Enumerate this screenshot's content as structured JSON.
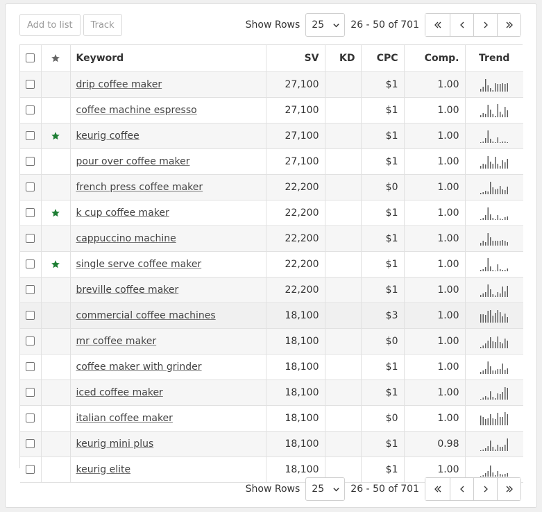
{
  "toolbar": {
    "add_to_list": "Add to list",
    "track": "Track",
    "show_rows_label": "Show Rows",
    "rows_value": "25",
    "range": "26 - 50 of 701"
  },
  "columns": {
    "keyword": "Keyword",
    "sv": "SV",
    "kd": "KD",
    "cpc": "CPC",
    "comp": "Comp.",
    "trend": "Trend"
  },
  "colors": {
    "star_green": "#1e7e34",
    "header_star": "#666666",
    "trend_bar": "#555555"
  },
  "rows": [
    {
      "keyword": "drip coffee maker",
      "starred": false,
      "sv": "27,100",
      "kd": "",
      "cpc": "$1",
      "comp": "1.00",
      "trend": [
        0.2,
        0.35,
        0.9,
        0.45,
        0.25,
        0.1,
        0.6,
        0.55,
        0.55,
        0.6,
        0.55,
        0.6
      ]
    },
    {
      "keyword": "coffee machine espresso",
      "starred": false,
      "sv": "27,100",
      "kd": "",
      "cpc": "$1",
      "comp": "1.00",
      "trend": [
        0.15,
        0.3,
        0.25,
        0.9,
        0.55,
        0.25,
        0.1,
        0.95,
        0.4,
        0.2,
        0.75,
        0.5
      ]
    },
    {
      "keyword": "keurig coffee",
      "starred": true,
      "sv": "27,100",
      "kd": "",
      "cpc": "$1",
      "comp": "1.00",
      "trend": [
        0.05,
        0.1,
        0.35,
        0.9,
        0.3,
        0.1,
        0.05,
        0.4,
        0.05,
        0.1,
        0.1,
        0.05
      ]
    },
    {
      "keyword": "pour over coffee maker",
      "starred": false,
      "sv": "27,100",
      "kd": "",
      "cpc": "$1",
      "comp": "1.00",
      "trend": [
        0.2,
        0.35,
        0.3,
        0.9,
        0.5,
        0.35,
        0.85,
        0.35,
        0.2,
        0.6,
        0.45,
        0.7
      ]
    },
    {
      "keyword": "french press coffee maker",
      "starred": false,
      "sv": "22,200",
      "kd": "",
      "cpc": "$0",
      "comp": "1.00",
      "trend": [
        0.1,
        0.15,
        0.25,
        0.2,
        0.9,
        0.5,
        0.35,
        0.4,
        0.6,
        0.35,
        0.3,
        0.55
      ]
    },
    {
      "keyword": "k cup coffee maker",
      "starred": true,
      "sv": "22,200",
      "kd": "",
      "cpc": "$1",
      "comp": "1.00",
      "trend": [
        0.05,
        0.15,
        0.35,
        0.9,
        0.4,
        0.15,
        0.05,
        0.35,
        0.1,
        0.05,
        0.2,
        0.25
      ]
    },
    {
      "keyword": "cappuccino machine",
      "starred": false,
      "sv": "22,200",
      "kd": "",
      "cpc": "$1",
      "comp": "1.00",
      "trend": [
        0.2,
        0.35,
        0.25,
        0.9,
        0.6,
        0.35,
        0.35,
        0.35,
        0.35,
        0.4,
        0.35,
        0.25
      ]
    },
    {
      "keyword": "single serve coffee maker",
      "starred": true,
      "sv": "22,200",
      "kd": "",
      "cpc": "$1",
      "comp": "1.00",
      "trend": [
        0.1,
        0.15,
        0.3,
        0.95,
        0.35,
        0.1,
        0.05,
        0.5,
        0.15,
        0.1,
        0.1,
        0.2
      ]
    },
    {
      "keyword": "breville coffee maker",
      "starred": false,
      "sv": "22,200",
      "kd": "",
      "cpc": "$1",
      "comp": "1.00",
      "trend": [
        0.15,
        0.25,
        0.35,
        0.9,
        0.55,
        0.2,
        0.1,
        0.35,
        0.25,
        0.75,
        0.4,
        0.8
      ]
    },
    {
      "keyword": "commercial coffee machines",
      "starred": false,
      "sv": "18,100",
      "kd": "",
      "cpc": "$3",
      "comp": "1.00",
      "trend": [
        0.6,
        0.6,
        0.55,
        0.85,
        0.9,
        0.5,
        0.7,
        0.9,
        0.75,
        0.45,
        0.65,
        0.4
      ]
    },
    {
      "keyword": "mr coffee maker",
      "starred": false,
      "sv": "18,100",
      "kd": "",
      "cpc": "$0",
      "comp": "1.00",
      "trend": [
        0.1,
        0.2,
        0.35,
        0.55,
        0.8,
        0.5,
        0.45,
        0.85,
        0.45,
        0.35,
        0.7,
        0.55
      ]
    },
    {
      "keyword": "coffee maker with grinder",
      "starred": false,
      "sv": "18,100",
      "kd": "",
      "cpc": "$1",
      "comp": "1.00",
      "trend": [
        0.15,
        0.25,
        0.35,
        0.9,
        0.55,
        0.25,
        0.25,
        0.35,
        0.35,
        0.75,
        0.3,
        0.4
      ]
    },
    {
      "keyword": "iced coffee maker",
      "starred": false,
      "sv": "18,100",
      "kd": "",
      "cpc": "$1",
      "comp": "1.00",
      "trend": [
        0.05,
        0.15,
        0.25,
        0.15,
        0.6,
        0.2,
        0.1,
        0.45,
        0.4,
        0.55,
        0.9,
        0.85
      ]
    },
    {
      "keyword": "italian coffee maker",
      "starred": false,
      "sv": "18,100",
      "kd": "",
      "cpc": "$0",
      "comp": "1.00",
      "trend": [
        0.7,
        0.6,
        0.45,
        0.5,
        0.8,
        0.5,
        0.45,
        0.9,
        0.6,
        0.6,
        0.95,
        0.8
      ]
    },
    {
      "keyword": "keurig mini plus",
      "starred": false,
      "sv": "18,100",
      "kd": "",
      "cpc": "$1",
      "comp": "0.98",
      "trend": [
        0.05,
        0.1,
        0.2,
        0.35,
        0.75,
        0.3,
        0.1,
        0.45,
        0.3,
        0.3,
        0.45,
        0.9
      ]
    },
    {
      "keyword": "keurig elite",
      "starred": false,
      "sv": "18,100",
      "kd": "",
      "cpc": "$1",
      "comp": "1.00",
      "trend": [
        0.05,
        0.1,
        0.25,
        0.4,
        0.8,
        0.3,
        0.1,
        0.4,
        0.2,
        0.15,
        0.2,
        0.25
      ]
    }
  ]
}
